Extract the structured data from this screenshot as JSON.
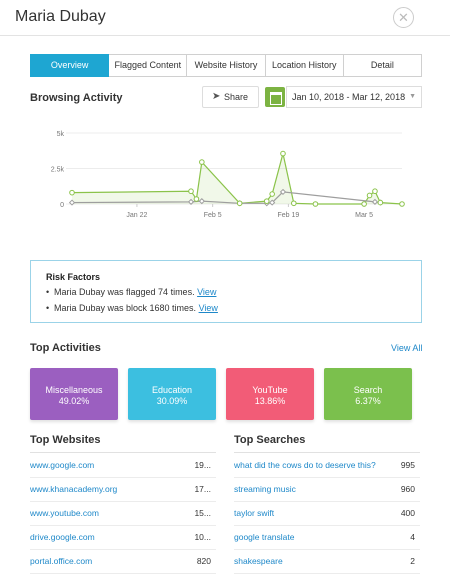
{
  "header": {
    "user_name": "Maria Dubay",
    "close_glyph": "✕"
  },
  "tabs": [
    {
      "label": "Overview",
      "active": true
    },
    {
      "label": "Flagged Content",
      "active": false
    },
    {
      "label": "Website History",
      "active": false
    },
    {
      "label": "Location History",
      "active": false
    },
    {
      "label": "Detail",
      "active": false
    }
  ],
  "browsing": {
    "title": "Browsing Activity",
    "share_label": "Share",
    "share_icon": "paper-plane-icon",
    "calendar_icon": "calendar-icon",
    "date_range": "Jan 10, 2018 - Mar 12, 2018"
  },
  "chart_data": {
    "type": "line",
    "x_ticks": [
      "Jan 22",
      "Feb 5",
      "Feb 19",
      "Mar 5"
    ],
    "y_ticks": [
      "5k",
      "2.5k",
      "0"
    ],
    "ylim": [
      0,
      5000
    ],
    "xlim": [
      "2018-01-10",
      "2018-03-12"
    ],
    "grid": true,
    "series": [
      {
        "color": "#8bc34a",
        "points": [
          [
            "2018-01-10",
            800
          ],
          [
            "2018-02-01",
            900
          ],
          [
            "2018-02-02",
            350
          ],
          [
            "2018-02-03",
            2950
          ],
          [
            "2018-02-10",
            50
          ],
          [
            "2018-02-15",
            200
          ],
          [
            "2018-02-16",
            700
          ],
          [
            "2018-02-18",
            3550
          ],
          [
            "2018-02-20",
            50
          ],
          [
            "2018-02-24",
            0
          ],
          [
            "2018-03-05",
            0
          ],
          [
            "2018-03-06",
            600
          ],
          [
            "2018-03-07",
            900
          ],
          [
            "2018-03-08",
            100
          ],
          [
            "2018-03-12",
            0
          ]
        ]
      },
      {
        "color": "#9e9e9e",
        "points": [
          [
            "2018-01-10",
            100
          ],
          [
            "2018-02-01",
            150
          ],
          [
            "2018-02-03",
            200
          ],
          [
            "2018-02-10",
            50
          ],
          [
            "2018-02-15",
            50
          ],
          [
            "2018-02-16",
            100
          ],
          [
            "2018-02-18",
            850
          ],
          [
            "2018-03-07",
            150
          ],
          [
            "2018-03-08",
            100
          ]
        ]
      }
    ]
  },
  "risk": {
    "title": "Risk Factors",
    "items": [
      {
        "text": "Maria Dubay was flagged 74 times.",
        "link": "View"
      },
      {
        "text": "Maria Dubay was block 1680 times.",
        "link": "View"
      }
    ]
  },
  "activities": {
    "title": "Top Activities",
    "view_all": "View All",
    "cards": [
      {
        "label": "Miscellaneous",
        "value": "49.02%",
        "color": "#9b5fc0"
      },
      {
        "label": "Education",
        "value": "30.09%",
        "color": "#3cbfe0"
      },
      {
        "label": "YouTube",
        "value": "13.86%",
        "color": "#f25c77"
      },
      {
        "label": "Search",
        "value": "6.37%",
        "color": "#7bc04d"
      }
    ]
  },
  "websites": {
    "title": "Top Websites",
    "rows": [
      {
        "site": "www.google.com",
        "count": "19..."
      },
      {
        "site": "www.khanacademy.org",
        "count": "17..."
      },
      {
        "site": "www.youtube.com",
        "count": "15..."
      },
      {
        "site": "drive.google.com",
        "count": "10..."
      },
      {
        "site": "portal.office.com",
        "count": "820"
      }
    ]
  },
  "searches": {
    "title": "Top Searches",
    "rows": [
      {
        "term": "what did the cows do to deserve this?",
        "count": "995"
      },
      {
        "term": "streaming music",
        "count": "960"
      },
      {
        "term": "taylor swift",
        "count": "400"
      },
      {
        "term": "google translate",
        "count": "4"
      },
      {
        "term": "shakespeare",
        "count": "2"
      }
    ]
  }
}
